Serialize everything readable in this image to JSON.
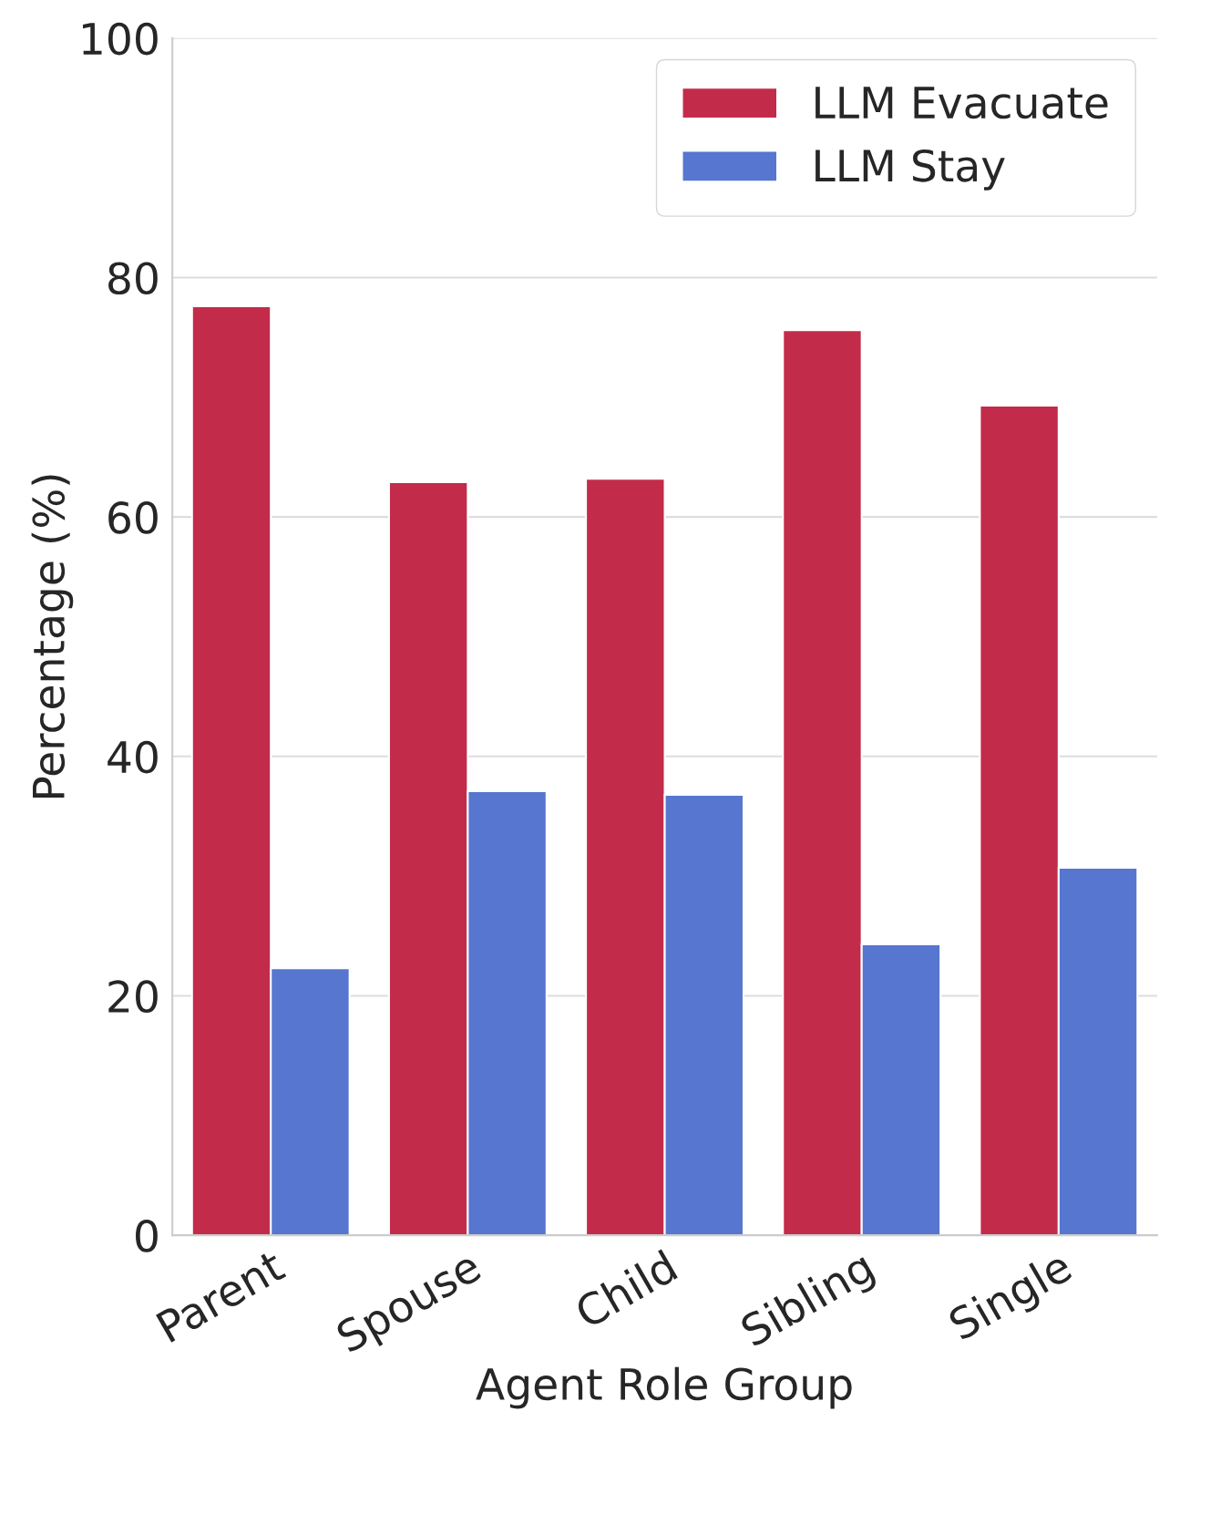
{
  "chart_data": {
    "type": "bar",
    "xlabel": "Agent Role Group",
    "ylabel": "Percentage (%)",
    "categories": [
      "Parent",
      "Spouse",
      "Child",
      "Sibling",
      "Single"
    ],
    "series": [
      {
        "name": "LLM Evacuate",
        "color": "#c32b4a",
        "values": [
          77.6,
          62.9,
          63.2,
          75.6,
          69.3
        ]
      },
      {
        "name": "LLM Stay",
        "color": "#5676cf",
        "values": [
          22.3,
          37.1,
          36.8,
          24.3,
          30.7
        ]
      }
    ],
    "ylim": [
      0,
      100
    ],
    "yticks": [
      0,
      20,
      40,
      60,
      80,
      100
    ],
    "grid": "y",
    "legend": "top right"
  }
}
